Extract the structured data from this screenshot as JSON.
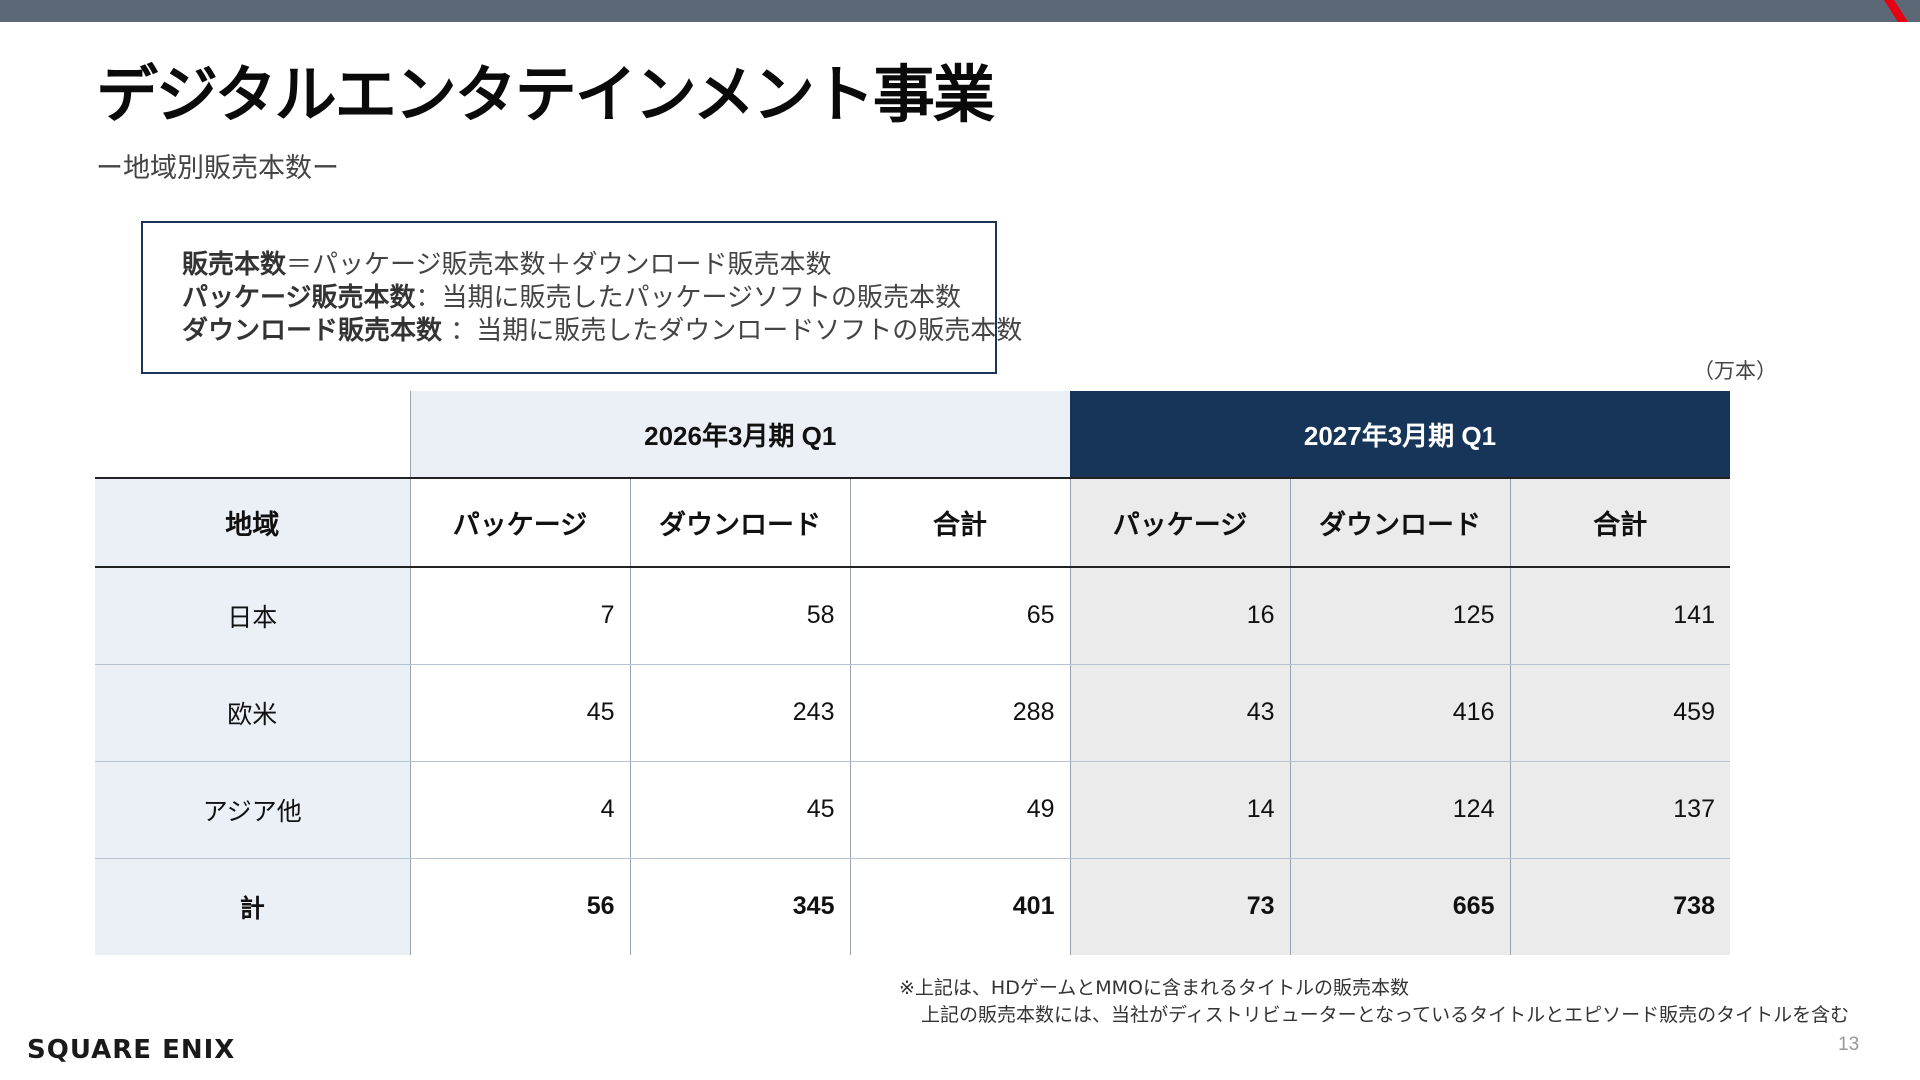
{
  "header": {
    "title": "デジタルエンタテインメント事業",
    "subtitle": "ー地域別販売本数ー"
  },
  "definitions": [
    {
      "term": "販売本数",
      "text": "＝パッケージ販売本数＋ダウンロード販売本数"
    },
    {
      "term": "パッケージ販売本数",
      "text": "：当期に販売したパッケージソフトの販売本数"
    },
    {
      "term": "ダウンロード販売本数",
      "text": " ：当期に販売したダウンロードソフトの販売本数"
    }
  ],
  "unit_note": "（万本）",
  "table": {
    "period_prev": "2026年3月期  Q1",
    "period_curr": "2027年3月期  Q1",
    "col_region": "地域",
    "col_package": "パッケージ",
    "col_download": "ダウンロード",
    "col_total": "合計",
    "rows": [
      {
        "region": "日本",
        "prev": [
          "7",
          "58",
          "65"
        ],
        "curr": [
          "16",
          "125",
          "141"
        ]
      },
      {
        "region": "欧米",
        "prev": [
          "45",
          "243",
          "288"
        ],
        "curr": [
          "43",
          "416",
          "459"
        ]
      },
      {
        "region": "アジア他",
        "prev": [
          "4",
          "45",
          "49"
        ],
        "curr": [
          "14",
          "124",
          "137"
        ]
      }
    ],
    "total": {
      "region": "計",
      "prev": [
        "56",
        "345",
        "401"
      ],
      "curr": [
        "73",
        "665",
        "738"
      ]
    }
  },
  "footnote": {
    "line1": "※上記は、HDゲームとMMOに含まれるタイトルの販売本数",
    "line2": "上記の販売本数には、当社がディストリビューターとなっているタイトルとエピソード販売のタイトルを含む"
  },
  "logo_text": "SQUARE ENIX",
  "page_number": "13",
  "colors": {
    "topbar": "#5d6877",
    "accent_red": "#e60012",
    "navy": "#173559",
    "light_blue": "#ebf0f7",
    "light_gray": "#ebebeb"
  }
}
